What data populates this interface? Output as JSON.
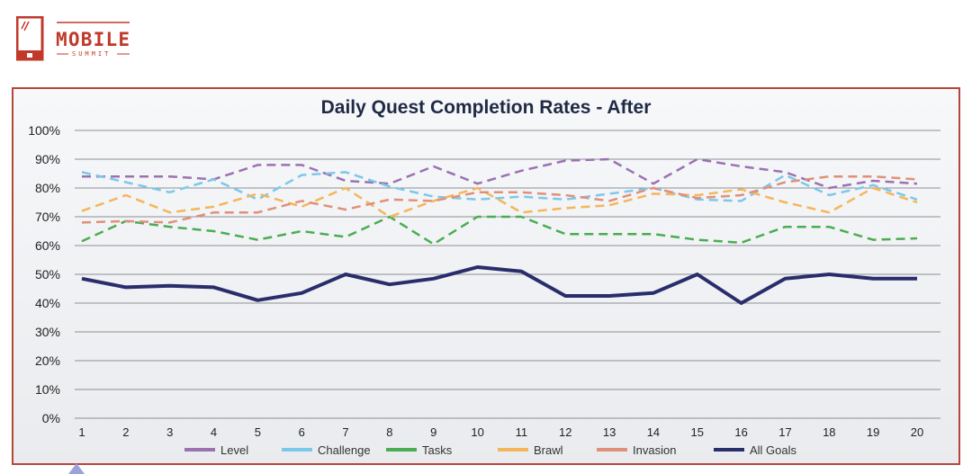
{
  "logo": {
    "title": "MOBILE",
    "subtitle": "SUMMIT",
    "color": "#c0392b"
  },
  "chart_data": {
    "type": "line",
    "title": "Daily Quest Completion Rates - After",
    "xlabel": "",
    "ylabel": "",
    "x": [
      1,
      2,
      3,
      4,
      5,
      6,
      7,
      8,
      9,
      10,
      11,
      12,
      13,
      14,
      15,
      16,
      17,
      18,
      19,
      20
    ],
    "ylim": [
      0,
      100
    ],
    "yticks": [
      "0%",
      "10%",
      "20%",
      "30%",
      "40%",
      "50%",
      "60%",
      "70%",
      "80%",
      "90%",
      "100%"
    ],
    "grid": true,
    "legend": "bottom",
    "series": [
      {
        "name": "Level",
        "color": "#9b72b0",
        "dashed": true,
        "values": [
          84,
          84,
          84,
          83,
          88,
          88,
          82.5,
          81.5,
          87.5,
          81.5,
          86,
          89.5,
          90,
          81.5,
          90,
          87.5,
          85.5,
          80,
          82.5,
          81.5
        ]
      },
      {
        "name": "Challenge",
        "color": "#7cc8ea",
        "dashed": true,
        "values": [
          85.5,
          82,
          78.5,
          83,
          76,
          84.5,
          85.5,
          80.5,
          77,
          76,
          77,
          76,
          78,
          80,
          76,
          75.5,
          84.5,
          77.5,
          81,
          76
        ]
      },
      {
        "name": "Tasks",
        "color": "#4aad52",
        "dashed": true,
        "values": [
          61.5,
          68.5,
          66.5,
          65,
          62,
          65,
          63,
          70,
          60.5,
          70,
          70,
          64,
          64,
          64,
          62,
          61,
          66.5,
          66.5,
          62,
          62.5
        ]
      },
      {
        "name": "Brawl",
        "color": "#f5b65a",
        "dashed": true,
        "values": [
          72,
          77.5,
          71.5,
          73.5,
          78,
          73.5,
          80,
          70,
          75.5,
          80,
          71.5,
          73,
          74,
          78,
          77.5,
          79.5,
          75,
          71.5,
          80,
          75
        ]
      },
      {
        "name": "Invasion",
        "color": "#e0907a",
        "dashed": true,
        "values": [
          68,
          68.5,
          68,
          71.5,
          71.5,
          75.5,
          72.5,
          76,
          75.5,
          78.5,
          78.5,
          77.5,
          75.5,
          80,
          76.5,
          77.5,
          82,
          84,
          84,
          83
        ]
      },
      {
        "name": "All Goals",
        "color": "#2a2d6b",
        "dashed": false,
        "values": [
          48.5,
          45.5,
          46,
          45.5,
          41,
          43.5,
          50,
          46.5,
          48.5,
          52.5,
          51,
          42.5,
          42.5,
          43.5,
          50,
          40,
          48.5,
          50,
          48.5,
          48.5
        ]
      }
    ]
  }
}
